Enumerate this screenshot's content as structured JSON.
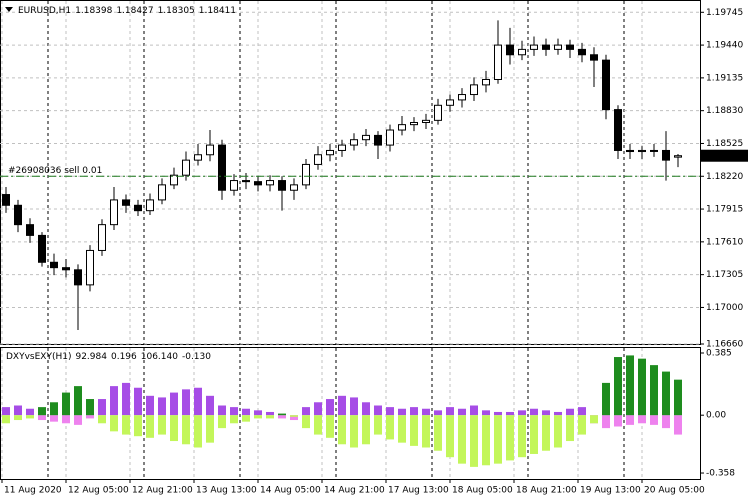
{
  "chart_data": [
    {
      "type": "candlestick",
      "symbol": "EURUSD,H1",
      "x": [
        0,
        3,
        6,
        9,
        12,
        15,
        18,
        21,
        24,
        27,
        30,
        33,
        36,
        39,
        42,
        45,
        48,
        51,
        54,
        57,
        60,
        63,
        66,
        69,
        72,
        75,
        78,
        81,
        84,
        87,
        90,
        93,
        96,
        99,
        102,
        105,
        108,
        111,
        114,
        117,
        120,
        123,
        126,
        129,
        132,
        135,
        138,
        141,
        144,
        147,
        150,
        153,
        156,
        159,
        162,
        165,
        168
      ],
      "open": [
        1.1805,
        1.1795,
        1.1777,
        1.1767,
        1.1742,
        1.1737,
        1.1735,
        1.1721,
        1.1753,
        1.1777,
        1.18,
        1.1795,
        1.179,
        1.18,
        1.1814,
        1.1823,
        1.1837,
        1.1842,
        1.1851,
        1.1809,
        1.1818,
        1.1817,
        1.1814,
        1.1818,
        1.1809,
        1.1814,
        1.1833,
        1.1842,
        1.1846,
        1.1851,
        1.1856,
        1.186,
        1.1851,
        1.1865,
        1.187,
        1.1872,
        1.1874,
        1.1888,
        1.1893,
        1.1898,
        1.1907,
        1.1912,
        1.1944,
        1.1935,
        1.194,
        1.1944,
        1.194,
        1.1944,
        1.194,
        1.1935,
        1.193,
        1.1884,
        1.1846,
        1.1845,
        1.1846,
        1.1846,
        1.18398
      ],
      "high": [
        1.1812,
        1.18,
        1.1783,
        1.177,
        1.175,
        1.1745,
        1.174,
        1.1758,
        1.1782,
        1.1812,
        1.1805,
        1.18,
        1.1806,
        1.182,
        1.183,
        1.1845,
        1.1852,
        1.1865,
        1.1856,
        1.1824,
        1.1825,
        1.1822,
        1.1823,
        1.1822,
        1.182,
        1.1838,
        1.185,
        1.1852,
        1.1856,
        1.1862,
        1.1866,
        1.1864,
        1.187,
        1.1878,
        1.1877,
        1.188,
        1.1894,
        1.1898,
        1.1904,
        1.1914,
        1.192,
        1.1967,
        1.196,
        1.1948,
        1.1952,
        1.195,
        1.195,
        1.1949,
        1.1946,
        1.1942,
        1.1935,
        1.1888,
        1.1852,
        1.185,
        1.1852,
        1.1864,
        1.18427
      ],
      "low": [
        1.1788,
        1.177,
        1.176,
        1.1738,
        1.173,
        1.1728,
        1.1679,
        1.1715,
        1.1748,
        1.1772,
        1.1788,
        1.1785,
        1.1786,
        1.1796,
        1.181,
        1.1818,
        1.1832,
        1.1836,
        1.18,
        1.1804,
        1.181,
        1.1808,
        1.1808,
        1.179,
        1.18,
        1.181,
        1.1828,
        1.1836,
        1.184,
        1.1846,
        1.185,
        1.1838,
        1.1845,
        1.186,
        1.1864,
        1.1866,
        1.187,
        1.1882,
        1.1886,
        1.1892,
        1.19,
        1.1908,
        1.1926,
        1.193,
        1.1934,
        1.1934,
        1.1935,
        1.1932,
        1.1928,
        1.1905,
        1.1875,
        1.1838,
        1.1838,
        1.1838,
        1.184,
        1.1818,
        1.18305
      ],
      "close": [
        1.1795,
        1.1777,
        1.1767,
        1.1742,
        1.1737,
        1.1735,
        1.1721,
        1.1753,
        1.1777,
        1.18,
        1.1795,
        1.179,
        1.18,
        1.1814,
        1.1823,
        1.1837,
        1.1842,
        1.1851,
        1.1809,
        1.1818,
        1.1817,
        1.1814,
        1.1818,
        1.1809,
        1.1814,
        1.1833,
        1.1842,
        1.1846,
        1.1851,
        1.1856,
        1.186,
        1.1851,
        1.1865,
        1.187,
        1.1872,
        1.1874,
        1.1888,
        1.1893,
        1.1898,
        1.1907,
        1.1912,
        1.1944,
        1.1935,
        1.194,
        1.1944,
        1.194,
        1.1944,
        1.194,
        1.1935,
        1.193,
        1.1884,
        1.1846,
        1.1845,
        1.1846,
        1.1846,
        1.1837,
        1.18411
      ],
      "current_price": 1.18411,
      "order_label": "#26908036 sell 0.01",
      "order_price": 1.1822,
      "order_color": "#1f7a1f",
      "xlim": [
        -1.5,
        173.5
      ],
      "ylim": [
        1.1666,
        1.1985
      ],
      "yticks": [
        1.19745,
        {
          "value": 1.1944,
          "label": "1.19440"
        },
        1.19135,
        {
          "value": 1.1883,
          "label": "1.18830"
        },
        1.18525,
        {
          "value": 1.1822,
          "label": "1.18220"
        },
        1.17915,
        {
          "value": 1.1761,
          "label": "1.17610"
        },
        1.17305,
        {
          "value": 1.17,
          "label": "1.17000"
        },
        {
          "value": 1.1666,
          "label": "1.16660"
        }
      ],
      "day_separators": [
        10.5,
        34.5,
        58.5,
        82.5,
        106.5,
        130.5,
        154.5
      ],
      "grid": true
    },
    {
      "type": "histogram",
      "title": "DXYvsEXY(H1)",
      "readouts": [
        92.984,
        0.196,
        {
          "value": 106.14,
          "label": "106.140"
        },
        {
          "value": -0.13,
          "label": "-0.130"
        }
      ],
      "x": [
        0,
        3,
        6,
        9,
        12,
        15,
        18,
        21,
        24,
        27,
        30,
        33,
        36,
        39,
        42,
        45,
        48,
        51,
        54,
        57,
        60,
        63,
        66,
        69,
        72,
        75,
        78,
        81,
        84,
        87,
        90,
        93,
        96,
        99,
        102,
        105,
        108,
        111,
        114,
        117,
        120,
        123,
        126,
        129,
        132,
        135,
        138,
        141,
        144,
        147,
        150,
        153,
        156,
        159,
        162,
        165,
        168
      ],
      "series": [
        {
          "pos_color": "#a64de6",
          "neg_color": "#ee82ee",
          "values": [
            0.05,
            0.06,
            0.04,
            -0.03,
            -0.04,
            -0.05,
            -0.06,
            -0.02,
            0.1,
            0.18,
            0.2,
            0.17,
            0.12,
            0.11,
            0.14,
            0.16,
            0.17,
            0.12,
            0.06,
            0.05,
            0.04,
            0.03,
            0.02,
            -0.02,
            -0.03,
            0.05,
            0.08,
            0.1,
            0.12,
            0.11,
            0.08,
            0.06,
            0.05,
            0.04,
            0.05,
            0.04,
            0.03,
            0.05,
            0.04,
            0.06,
            0.03,
            0.02,
            0.02,
            0.03,
            0.04,
            0.03,
            0.02,
            0.04,
            0.05,
            -0.05,
            -0.08,
            -0.07,
            -0.06,
            -0.05,
            -0.06,
            -0.08,
            -0.12
          ]
        },
        {
          "pos_color": "#1e8c1e",
          "neg_color": "#c3f65a",
          "values": [
            -0.05,
            -0.03,
            -0.02,
            0.05,
            0.08,
            0.14,
            0.18,
            0.1,
            -0.05,
            -0.1,
            -0.12,
            -0.13,
            -0.14,
            -0.12,
            -0.16,
            -0.18,
            -0.2,
            -0.17,
            -0.08,
            -0.05,
            -0.04,
            -0.02,
            -0.02,
            0.01,
            -0.01,
            -0.08,
            -0.12,
            -0.14,
            -0.18,
            -0.2,
            -0.18,
            -0.12,
            -0.15,
            -0.17,
            -0.19,
            -0.2,
            -0.22,
            -0.26,
            -0.3,
            -0.32,
            -0.31,
            -0.3,
            -0.28,
            -0.26,
            -0.24,
            -0.22,
            -0.2,
            -0.16,
            -0.12,
            -0.05,
            0.2,
            0.36,
            0.37,
            0.35,
            0.31,
            0.27,
            0.22
          ]
        }
      ],
      "xlim": [
        -1.5,
        173.5
      ],
      "ylim": [
        -0.395,
        0.416
      ],
      "yticks": [
        0.385,
        {
          "value": 0,
          "label": "0.00"
        },
        -0.358
      ],
      "xticks": [
        {
          "value": -1,
          "label": "11 Aug 2020"
        },
        {
          "value": 15,
          "label": "12 Aug 05:00"
        },
        {
          "value": 31,
          "label": "12 Aug 21:00"
        },
        {
          "value": 47,
          "label": "13 Aug 13:00"
        },
        {
          "value": 63,
          "label": "14 Aug 05:00"
        },
        {
          "value": 79,
          "label": "14 Aug 21:00"
        },
        {
          "value": 95,
          "label": "17 Aug 13:00"
        },
        {
          "value": 111,
          "label": "18 Aug 05:00"
        },
        {
          "value": 127,
          "label": "18 Aug 21:00"
        },
        {
          "value": 143,
          "label": "19 Aug 13:00"
        },
        {
          "value": 159,
          "label": "20 Aug 05:00"
        }
      ]
    }
  ]
}
